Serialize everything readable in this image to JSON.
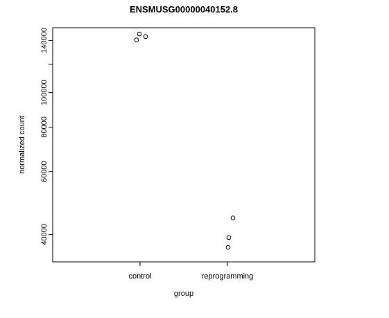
{
  "chart_data": {
    "type": "scatter",
    "title": "ENSMUSG00000040152.8",
    "xlabel": "group",
    "ylabel": "normalized count",
    "y_scale": "log",
    "ylim": [
      33500,
      152000
    ],
    "grid": false,
    "legend": "none",
    "categories": [
      "control",
      "reprogramming"
    ],
    "y_ticks": [
      {
        "value": 40000,
        "label": "40000"
      },
      {
        "value": 60000,
        "label": "60000"
      },
      {
        "value": 80000,
        "label": "80000"
      },
      {
        "value": 100000,
        "label": "100000"
      },
      {
        "value": 120000,
        "label": ""
      },
      {
        "value": 140000,
        "label": "140000"
      }
    ],
    "points": [
      {
        "category": "control",
        "y": 146000
      },
      {
        "category": "control",
        "y": 143500
      },
      {
        "category": "control",
        "y": 140500
      },
      {
        "category": "reprogramming",
        "y": 44500
      },
      {
        "category": "reprogramming",
        "y": 39200
      },
      {
        "category": "reprogramming",
        "y": 36800
      }
    ],
    "colors": {
      "marker": "#000000",
      "axis": "#000000",
      "background": "#ffffff"
    }
  }
}
